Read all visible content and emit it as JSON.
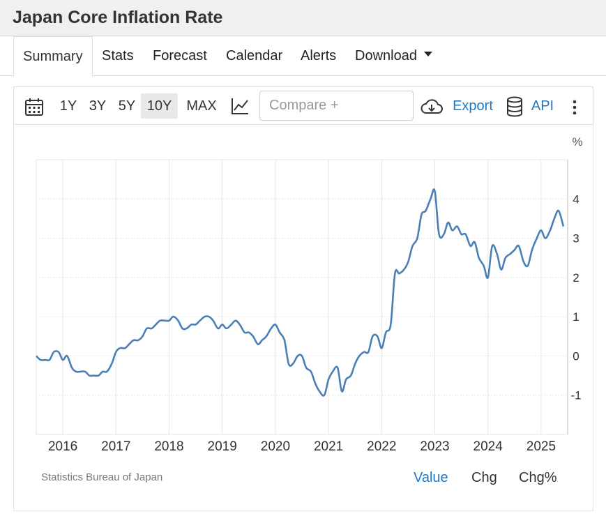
{
  "page": {
    "title": "Japan Core Inflation Rate"
  },
  "tabs": [
    {
      "label": "Summary",
      "active": true
    },
    {
      "label": "Stats"
    },
    {
      "label": "Forecast"
    },
    {
      "label": "Calendar"
    },
    {
      "label": "Alerts"
    },
    {
      "label": "Download"
    }
  ],
  "toolbar": {
    "ranges": [
      "1Y",
      "3Y",
      "5Y",
      "10Y",
      "MAX"
    ],
    "selected_range": "10Y",
    "compare_placeholder": "Compare +",
    "export_label": "Export",
    "api_label": "API",
    "icons": [
      "calendar-icon",
      "chart-type-icon",
      "cloud-download-icon",
      "database-icon",
      "more-vertical-icon"
    ]
  },
  "footer": {
    "source": "Statistics Bureau of Japan",
    "modes": [
      "Value",
      "Chg",
      "Chg%"
    ],
    "selected_mode": "Value"
  },
  "colors": {
    "line": "#4a7fb5",
    "accent": "#1f77c4",
    "grid": "#e6e6e6"
  },
  "chart_data": {
    "type": "line",
    "title": "",
    "xlabel": "",
    "ylabel": "%",
    "ylim": [
      -2,
      5
    ],
    "xlim": [
      2015.5,
      2025.5
    ],
    "yticks": [
      -1,
      0,
      1,
      2,
      3,
      4
    ],
    "xticks": [
      2016,
      2017,
      2018,
      2019,
      2020,
      2021,
      2022,
      2023,
      2024,
      2025
    ],
    "grid": true,
    "series": [
      {
        "x": [
          2015.5,
          2015.58,
          2015.67,
          2015.75,
          2015.83,
          2015.92,
          2016,
          2016.08,
          2016.17,
          2016.25,
          2016.33,
          2016.42,
          2016.5,
          2016.58,
          2016.67,
          2016.75,
          2016.83,
          2016.92,
          2017,
          2017.08,
          2017.17,
          2017.25,
          2017.33,
          2017.42,
          2017.5,
          2017.58,
          2017.67,
          2017.75,
          2017.83,
          2017.92,
          2018,
          2018.08,
          2018.17,
          2018.25,
          2018.33,
          2018.42,
          2018.5,
          2018.58,
          2018.67,
          2018.75,
          2018.83,
          2018.92,
          2019,
          2019.08,
          2019.17,
          2019.25,
          2019.33,
          2019.42,
          2019.5,
          2019.58,
          2019.67,
          2019.75,
          2019.83,
          2019.92,
          2020,
          2020.08,
          2020.17,
          2020.25,
          2020.33,
          2020.42,
          2020.5,
          2020.58,
          2020.67,
          2020.75,
          2020.83,
          2020.92,
          2021,
          2021.08,
          2021.17,
          2021.25,
          2021.33,
          2021.42,
          2021.5,
          2021.58,
          2021.67,
          2021.75,
          2021.83,
          2021.92,
          2022,
          2022.08,
          2022.17,
          2022.25,
          2022.33,
          2022.42,
          2022.5,
          2022.58,
          2022.67,
          2022.75,
          2022.83,
          2022.92,
          2023,
          2023.08,
          2023.17,
          2023.25,
          2023.33,
          2023.42,
          2023.5,
          2023.58,
          2023.67,
          2023.75,
          2023.83,
          2023.92,
          2024,
          2024.08,
          2024.17,
          2024.25,
          2024.33,
          2024.42,
          2024.5,
          2024.58,
          2024.67,
          2024.75,
          2024.83,
          2024.92,
          2025,
          2025.08,
          2025.17,
          2025.25,
          2025.33,
          2025.42
        ],
        "values": [
          0,
          -0.1,
          -0.1,
          -0.1,
          0.1,
          0.1,
          -0.1,
          0,
          -0.3,
          -0.4,
          -0.4,
          -0.4,
          -0.5,
          -0.5,
          -0.5,
          -0.4,
          -0.4,
          -0.2,
          0.1,
          0.2,
          0.2,
          0.3,
          0.4,
          0.4,
          0.5,
          0.7,
          0.7,
          0.8,
          0.9,
          0.9,
          0.9,
          1.0,
          0.9,
          0.7,
          0.7,
          0.8,
          0.8,
          0.9,
          1.0,
          1.0,
          0.9,
          0.7,
          0.8,
          0.7,
          0.8,
          0.9,
          0.8,
          0.6,
          0.6,
          0.5,
          0.3,
          0.4,
          0.5,
          0.7,
          0.8,
          0.6,
          0.4,
          -0.2,
          -0.2,
          0,
          0,
          -0.3,
          -0.4,
          -0.7,
          -0.9,
          -1.0,
          -0.6,
          -0.4,
          -0.3,
          -0.9,
          -0.6,
          -0.5,
          -0.2,
          0,
          0.1,
          0.1,
          0.5,
          0.5,
          0.2,
          0.6,
          0.8,
          2.1,
          2.1,
          2.2,
          2.4,
          2.8,
          3.0,
          3.6,
          3.7,
          4.0,
          4.2,
          3.1,
          3.1,
          3.4,
          3.2,
          3.3,
          3.1,
          3.1,
          2.8,
          2.9,
          2.5,
          2.3,
          2.0,
          2.8,
          2.6,
          2.2,
          2.5,
          2.6,
          2.7,
          2.8,
          2.4,
          2.3,
          2.7,
          3.0,
          3.2,
          3.0,
          3.2,
          3.5,
          3.7,
          3.3
        ]
      }
    ]
  }
}
